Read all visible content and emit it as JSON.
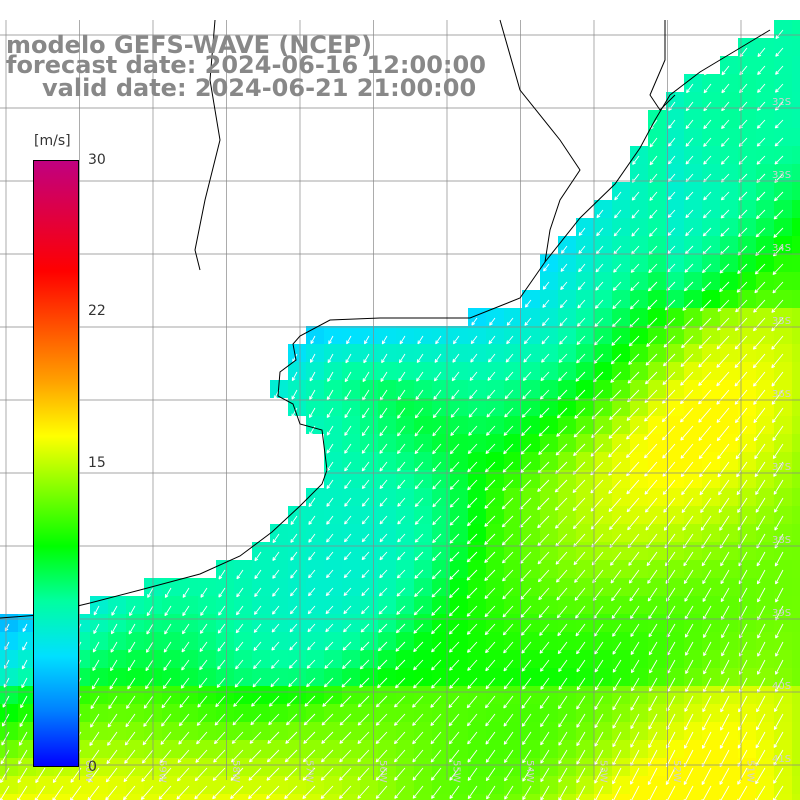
{
  "title": {
    "model": "modelo GEFS-WAVE (NCEP)",
    "forecast": "forecast date: 2024-06-16 12:00:00",
    "valid": "valid date: 2024-06-21 21:00:00"
  },
  "colorbar": {
    "unit": "[m/s]",
    "min": 0,
    "max": 30,
    "ticks": [
      "30",
      "22",
      "15",
      "0"
    ],
    "tick_values": [
      30,
      22,
      15,
      0
    ],
    "gradient": [
      "#0000ff",
      "#0080ff",
      "#00e0ff",
      "#00ffa0",
      "#00ff00",
      "#80ff00",
      "#ffff00",
      "#ffa000",
      "#ff5000",
      "#ff0000",
      "#e00040",
      "#c00080"
    ]
  },
  "map": {
    "variable": "wind speed and direction",
    "lat_labels": [
      "32S",
      "33S",
      "34S",
      "35S",
      "36S",
      "37S",
      "38S",
      "39S",
      "40S",
      "41S"
    ],
    "lon_labels": [
      "60W",
      "59W",
      "58W",
      "57W",
      "56W",
      "55W",
      "54W",
      "53W",
      "52W",
      "51W"
    ]
  }
}
